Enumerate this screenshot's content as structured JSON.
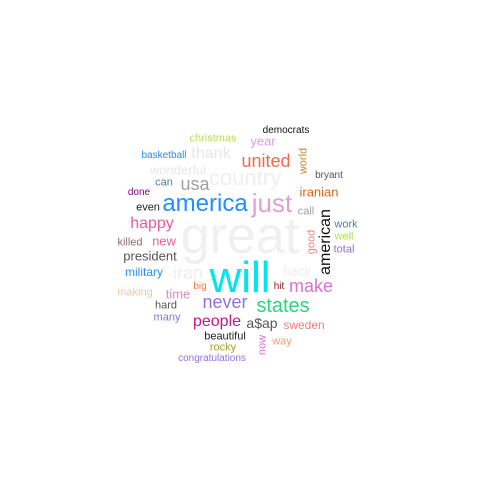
{
  "word_cloud": {
    "words": [
      {
        "text": "great",
        "color": "#f0f0f0"
      },
      {
        "text": "will",
        "color": "#00e5ee"
      },
      {
        "text": "america",
        "color": "#1e90ff"
      },
      {
        "text": "just",
        "color": "#dda0dd"
      },
      {
        "text": "country",
        "color": "#efefef"
      },
      {
        "text": "states",
        "color": "#2ed47a"
      },
      {
        "text": "united",
        "color": "#ee6a50"
      },
      {
        "text": "usa",
        "color": "#a0a0a0"
      },
      {
        "text": "never",
        "color": "#9370db"
      },
      {
        "text": "make",
        "color": "#da70d6"
      },
      {
        "text": "american",
        "color": "#111111"
      },
      {
        "text": "happy",
        "color": "#e75a9d"
      },
      {
        "text": "people",
        "color": "#c71585"
      },
      {
        "text": "iran",
        "color": "#efefef"
      },
      {
        "text": "thank",
        "color": "#e6e6e6"
      },
      {
        "text": "president",
        "color": "#555555"
      },
      {
        "text": "a$ap",
        "color": "#555555"
      },
      {
        "text": "time",
        "color": "#da8ac9"
      },
      {
        "text": "military",
        "color": "#1e90ff"
      },
      {
        "text": "year",
        "color": "#dda0dd"
      },
      {
        "text": "iranian",
        "color": "#d2691e"
      },
      {
        "text": "new",
        "color": "#f06292"
      },
      {
        "text": "wonderful",
        "color": "#e8e8e8"
      },
      {
        "text": "back",
        "color": "#eeeeee"
      },
      {
        "text": "sweden",
        "color": "#f08080"
      },
      {
        "text": "christmas",
        "color": "#b3e24f"
      },
      {
        "text": "call",
        "color": "#a0a0a0"
      },
      {
        "text": "world",
        "color": "#c08a2a"
      },
      {
        "text": "work",
        "color": "#4682b4"
      },
      {
        "text": "killed",
        "color": "#8b6f6f"
      },
      {
        "text": "making",
        "color": "#f0c8a0"
      },
      {
        "text": "hard",
        "color": "#555555"
      },
      {
        "text": "many",
        "color": "#9370db"
      },
      {
        "text": "beautiful",
        "color": "#222222"
      },
      {
        "text": "rocky",
        "color": "#9aa52a"
      },
      {
        "text": "now",
        "color": "#da70d6"
      },
      {
        "text": "way",
        "color": "#f0a070"
      },
      {
        "text": "good",
        "color": "#f08080"
      },
      {
        "text": "well",
        "color": "#b3e24f"
      },
      {
        "text": "total",
        "color": "#9370db"
      },
      {
        "text": "can",
        "color": "#4682b4"
      },
      {
        "text": "even",
        "color": "#222222"
      },
      {
        "text": "done",
        "color": "#800080"
      },
      {
        "text": "basketball",
        "color": "#1e90ff"
      },
      {
        "text": "democrats",
        "color": "#111111"
      },
      {
        "text": "bryant",
        "color": "#555555"
      },
      {
        "text": "big",
        "color": "#f08040"
      },
      {
        "text": "hit",
        "color": "#8b1a1a"
      },
      {
        "text": "congratulations",
        "color": "#9370db"
      }
    ]
  }
}
